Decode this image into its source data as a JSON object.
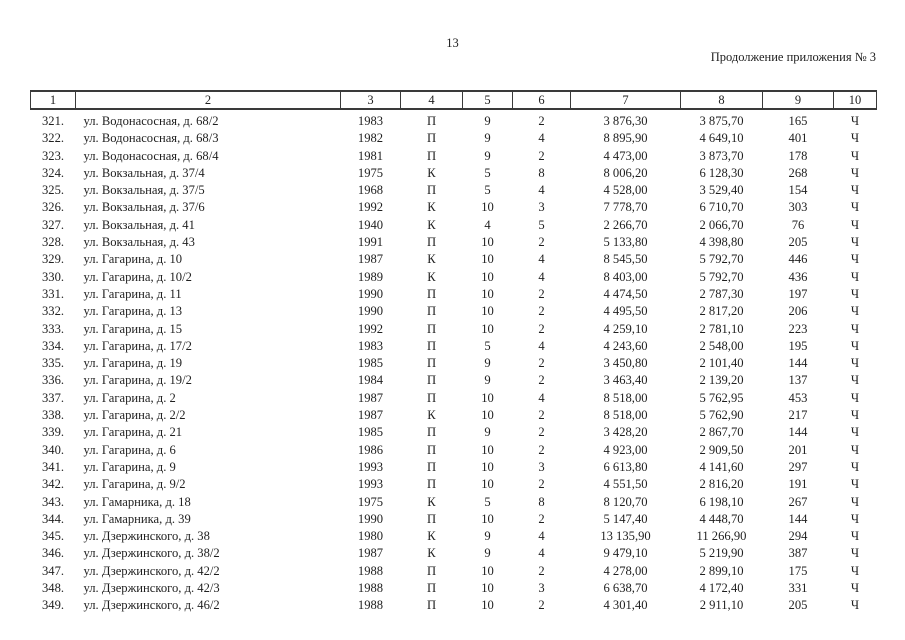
{
  "page": {
    "number": "13",
    "continuation": "Продолжение приложения № 3"
  },
  "table": {
    "columns": [
      "1",
      "2",
      "3",
      "4",
      "5",
      "6",
      "7",
      "8",
      "9",
      "10"
    ],
    "rows": [
      [
        "321.",
        "ул. Водонасосная, д. 68/2",
        "1983",
        "П",
        "9",
        "2",
        "3 876,30",
        "3 875,70",
        "165",
        "Ч"
      ],
      [
        "322.",
        "ул. Водонасосная, д. 68/3",
        "1982",
        "П",
        "9",
        "4",
        "8 895,90",
        "4 649,10",
        "401",
        "Ч"
      ],
      [
        "323.",
        "ул. Водонасосная, д. 68/4",
        "1981",
        "П",
        "9",
        "2",
        "4 473,00",
        "3 873,70",
        "178",
        "Ч"
      ],
      [
        "324.",
        "ул. Вокзальная, д. 37/4",
        "1975",
        "К",
        "5",
        "8",
        "8 006,20",
        "6 128,30",
        "268",
        "Ч"
      ],
      [
        "325.",
        "ул. Вокзальная, д. 37/5",
        "1968",
        "П",
        "5",
        "4",
        "4 528,00",
        "3 529,40",
        "154",
        "Ч"
      ],
      [
        "326.",
        "ул. Вокзальная, д. 37/6",
        "1992",
        "К",
        "10",
        "3",
        "7 778,70",
        "6 710,70",
        "303",
        "Ч"
      ],
      [
        "327.",
        "ул. Вокзальная, д. 41",
        "1940",
        "К",
        "4",
        "5",
        "2 266,70",
        "2 066,70",
        "76",
        "Ч"
      ],
      [
        "328.",
        "ул. Вокзальная, д. 43",
        "1991",
        "П",
        "10",
        "2",
        "5 133,80",
        "4 398,80",
        "205",
        "Ч"
      ],
      [
        "329.",
        "ул. Гагарина, д. 10",
        "1987",
        "К",
        "10",
        "4",
        "8 545,50",
        "5 792,70",
        "446",
        "Ч"
      ],
      [
        "330.",
        "ул. Гагарина, д. 10/2",
        "1989",
        "К",
        "10",
        "4",
        "8 403,00",
        "5 792,70",
        "436",
        "Ч"
      ],
      [
        "331.",
        "ул. Гагарина, д. 11",
        "1990",
        "П",
        "10",
        "2",
        "4 474,50",
        "2 787,30",
        "197",
        "Ч"
      ],
      [
        "332.",
        "ул. Гагарина, д. 13",
        "1990",
        "П",
        "10",
        "2",
        "4 495,50",
        "2 817,20",
        "206",
        "Ч"
      ],
      [
        "333.",
        "ул. Гагарина, д. 15",
        "1992",
        "П",
        "10",
        "2",
        "4 259,10",
        "2 781,10",
        "223",
        "Ч"
      ],
      [
        "334.",
        "ул. Гагарина, д. 17/2",
        "1983",
        "П",
        "5",
        "4",
        "4 243,60",
        "2 548,00",
        "195",
        "Ч"
      ],
      [
        "335.",
        "ул. Гагарина, д. 19",
        "1985",
        "П",
        "9",
        "2",
        "3 450,80",
        "2 101,40",
        "144",
        "Ч"
      ],
      [
        "336.",
        "ул. Гагарина, д. 19/2",
        "1984",
        "П",
        "9",
        "2",
        "3 463,40",
        "2 139,20",
        "137",
        "Ч"
      ],
      [
        "337.",
        "ул. Гагарина, д. 2",
        "1987",
        "П",
        "10",
        "4",
        "8 518,00",
        "5 762,95",
        "453",
        "Ч"
      ],
      [
        "338.",
        "ул. Гагарина, д. 2/2",
        "1987",
        "К",
        "10",
        "2",
        "8 518,00",
        "5 762,90",
        "217",
        "Ч"
      ],
      [
        "339.",
        "ул. Гагарина, д. 21",
        "1985",
        "П",
        "9",
        "2",
        "3 428,20",
        "2 867,70",
        "144",
        "Ч"
      ],
      [
        "340.",
        "ул. Гагарина, д. 6",
        "1986",
        "П",
        "10",
        "2",
        "4 923,00",
        "2 909,50",
        "201",
        "Ч"
      ],
      [
        "341.",
        "ул. Гагарина, д. 9",
        "1993",
        "П",
        "10",
        "3",
        "6 613,80",
        "4 141,60",
        "297",
        "Ч"
      ],
      [
        "342.",
        "ул. Гагарина, д. 9/2",
        "1993",
        "П",
        "10",
        "2",
        "4 551,50",
        "2 816,20",
        "191",
        "Ч"
      ],
      [
        "343.",
        "ул. Гамарника, д. 18",
        "1975",
        "К",
        "5",
        "8",
        "8 120,70",
        "6 198,10",
        "267",
        "Ч"
      ],
      [
        "344.",
        "ул. Гамарника, д. 39",
        "1990",
        "П",
        "10",
        "2",
        "5 147,40",
        "4 448,70",
        "144",
        "Ч"
      ],
      [
        "345.",
        "ул. Дзержинского, д. 38",
        "1980",
        "К",
        "9",
        "4",
        "13 135,90",
        "11 266,90",
        "294",
        "Ч"
      ],
      [
        "346.",
        "ул. Дзержинского, д. 38/2",
        "1987",
        "К",
        "9",
        "4",
        "9 479,10",
        "5 219,90",
        "387",
        "Ч"
      ],
      [
        "347.",
        "ул. Дзержинского, д. 42/2",
        "1988",
        "П",
        "10",
        "2",
        "4 278,00",
        "2 899,10",
        "175",
        "Ч"
      ],
      [
        "348.",
        "ул. Дзержинского, д. 42/3",
        "1988",
        "П",
        "10",
        "3",
        "6 638,70",
        "4 172,40",
        "331",
        "Ч"
      ],
      [
        "349.",
        "ул. Дзержинского, д. 46/2",
        "1988",
        "П",
        "10",
        "2",
        "4 301,40",
        "2 911,10",
        "205",
        "Ч"
      ]
    ]
  }
}
